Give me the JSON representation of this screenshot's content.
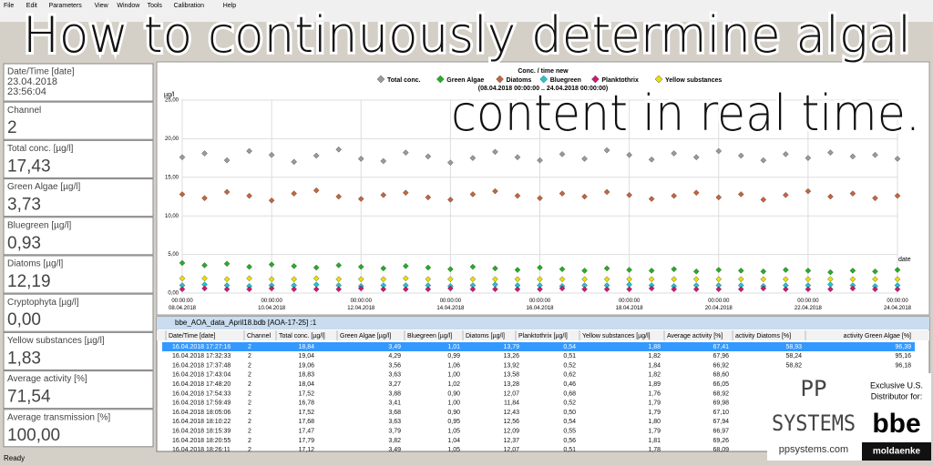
{
  "menu": [
    "File",
    "Edit",
    "Parameters",
    "View",
    "Window",
    "Tools",
    "Calibration",
    "Help"
  ],
  "overlay_title": [
    "How to continuously determine algal",
    "content in real time."
  ],
  "panel": [
    {
      "label": "Date/Time [date]",
      "value": [
        "23.04.2018",
        "23:56:04"
      ]
    },
    {
      "label": "Channel",
      "value": "2"
    },
    {
      "label": "Total conc. [µg/l]",
      "value": "17,43"
    },
    {
      "label": "Green Algae [µg/l]",
      "value": "3,73"
    },
    {
      "label": "Bluegreen [µg/l]",
      "value": "0,93"
    },
    {
      "label": "Diatoms [µg/l]",
      "value": "12,19"
    },
    {
      "label": "Cryptophyta [µg/l]",
      "value": "0,00"
    },
    {
      "label": "Yellow substances [µg/l]",
      "value": "1,83"
    },
    {
      "label": "Average activity [%]",
      "value": "71,54"
    },
    {
      "label": "Average transmission [%]",
      "value": "100,00"
    }
  ],
  "chart_data": {
    "type": "scatter",
    "title": "Conc. / time new",
    "subtitle": "(08.04.2018 00:00:00 .. 24.04.2018 00:00:00)",
    "y_label": "µg/l",
    "x_label": "date",
    "xlim": [
      "08.04.2018 00:00:00",
      "24.04.2018 00:00:00"
    ],
    "xticks": [
      "08.04.2018 00:00:00",
      "10.04.2018 00:00:00",
      "12.04.2018 00:00:00",
      "14.04.2018 00:00:00",
      "16.04.2018 00:00:00",
      "18.04.2018 00:00:00",
      "20.04.2018 00:00:00",
      "22.04.2018 00:00:00",
      "24.04.2018 00:00:00"
    ],
    "ylim": [
      0,
      25
    ],
    "yticks": [
      {
        "value": 0,
        "label": "0,00"
      },
      {
        "value": 5,
        "label": "5,00"
      },
      {
        "value": 10,
        "label": "10,00"
      },
      {
        "value": 15,
        "label": "15,00"
      },
      {
        "value": 20,
        "label": "20,00"
      },
      {
        "value": 25,
        "label": "25,00"
      }
    ],
    "grid": true,
    "x": [
      "08.04.2018 00:00:00",
      "08.04.2018 12:00:00",
      "09.04.2018 00:00:00",
      "09.04.2018 12:00:00",
      "10.04.2018 00:00:00",
      "10.04.2018 12:00:00",
      "11.04.2018 00:00:00",
      "11.04.2018 12:00:00",
      "12.04.2018 00:00:00",
      "12.04.2018 12:00:00",
      "13.04.2018 00:00:00",
      "13.04.2018 12:00:00",
      "14.04.2018 00:00:00",
      "14.04.2018 12:00:00",
      "15.04.2018 00:00:00",
      "15.04.2018 12:00:00",
      "16.04.2018 00:00:00",
      "16.04.2018 12:00:00",
      "17.04.2018 00:00:00",
      "17.04.2018 12:00:00",
      "18.04.2018 00:00:00",
      "18.04.2018 12:00:00",
      "19.04.2018 00:00:00",
      "19.04.2018 12:00:00",
      "20.04.2018 00:00:00",
      "20.04.2018 12:00:00",
      "21.04.2018 00:00:00",
      "21.04.2018 12:00:00",
      "22.04.2018 00:00:00",
      "22.04.2018 12:00:00",
      "23.04.2018 00:00:00",
      "23.04.2018 12:00:00",
      "24.04.2018 00:00:00"
    ],
    "series": [
      {
        "name": "Total conc.",
        "color": "#9a9a9a",
        "values": [
          17.6,
          18.1,
          17.2,
          18.4,
          17.9,
          17.0,
          17.8,
          18.6,
          17.4,
          17.1,
          18.2,
          17.7,
          16.9,
          17.5,
          18.3,
          17.6,
          17.2,
          18.0,
          17.4,
          18.5,
          17.9,
          17.3,
          18.1,
          17.6,
          18.4,
          17.8,
          17.2,
          18.0,
          17.5,
          18.2,
          17.7,
          17.9,
          17.4
        ]
      },
      {
        "name": "Green Algae",
        "color": "#22b022",
        "values": [
          3.9,
          3.6,
          3.8,
          3.4,
          3.7,
          3.5,
          3.3,
          3.6,
          3.4,
          3.2,
          3.5,
          3.3,
          3.1,
          3.4,
          3.2,
          3.0,
          3.3,
          3.1,
          2.9,
          3.2,
          3.0,
          2.9,
          3.1,
          2.8,
          3.0,
          2.9,
          2.8,
          3.0,
          2.9,
          2.7,
          2.9,
          2.8,
          3.0
        ]
      },
      {
        "name": "Diatoms",
        "color": "#c8643c",
        "values": [
          12.8,
          12.3,
          13.1,
          12.6,
          12.0,
          12.9,
          13.3,
          12.5,
          12.2,
          12.7,
          13.0,
          12.4,
          12.1,
          12.8,
          13.2,
          12.6,
          12.3,
          12.9,
          12.5,
          13.1,
          12.7,
          12.2,
          12.6,
          13.0,
          12.4,
          12.8,
          12.1,
          12.7,
          13.2,
          12.5,
          12.9,
          12.3,
          12.6
        ]
      },
      {
        "name": "Bluegreen",
        "color": "#18c8d8",
        "values": [
          1.0,
          1.1,
          1.0,
          0.9,
          1.0,
          1.0,
          1.1,
          1.0,
          0.9,
          1.0,
          1.0,
          1.0,
          0.9,
          1.0,
          1.1,
          1.0,
          1.0,
          0.9,
          1.0,
          1.0,
          1.1,
          1.0,
          0.9,
          1.0,
          1.0,
          1.0,
          0.9,
          1.0,
          1.0,
          1.1,
          1.0,
          0.9,
          1.0
        ]
      },
      {
        "name": "Planktothrix",
        "color": "#d01870",
        "values": [
          0.5,
          0.6,
          0.5,
          0.5,
          0.6,
          0.5,
          0.5,
          0.5,
          0.6,
          0.5,
          0.5,
          0.5,
          0.6,
          0.5,
          0.5,
          0.5,
          0.5,
          0.6,
          0.5,
          0.5,
          0.5,
          0.6,
          0.5,
          0.5,
          0.5,
          0.5,
          0.6,
          0.5,
          0.5,
          0.5,
          0.6,
          0.5,
          0.5
        ]
      },
      {
        "name": "Yellow substances",
        "color": "#e8e000",
        "values": [
          1.9,
          1.9,
          1.8,
          1.9,
          1.8,
          1.8,
          1.9,
          1.8,
          1.8,
          1.8,
          1.9,
          1.8,
          1.8,
          1.8,
          1.8,
          1.8,
          1.8,
          1.8,
          1.8,
          1.8,
          1.8,
          1.8,
          1.8,
          1.8,
          1.8,
          1.8,
          1.8,
          1.8,
          1.8,
          1.8,
          1.8,
          1.8,
          1.8
        ]
      }
    ]
  },
  "table": {
    "title": "bbe_AOA_data_April18.bdb [AOA-17-25] :1",
    "columns": [
      "Date/Time [date]",
      "Channel",
      "Total conc. [µg/l]",
      "Green Algae [µg/l]",
      "Bluegreen [µg/l]",
      "Diatoms [µg/l]",
      "Planktothrix [µg/l]",
      "Yellow substances [µg/l]",
      "Average activity [%]",
      "activity Diatoms [%]",
      "activity Green Algae [%]"
    ],
    "rows": [
      [
        "16.04.2018 17:27:16",
        "2",
        "18,84",
        "3,49",
        "1,01",
        "13,79",
        "0,54",
        "1,88",
        "67,41",
        "58,93",
        "96,39"
      ],
      [
        "16.04.2018 17:32:33",
        "2",
        "19,04",
        "4,29",
        "0,99",
        "13,26",
        "0,51",
        "1,82",
        "67,96",
        "58,24",
        "95,16"
      ],
      [
        "16.04.2018 17:37:48",
        "2",
        "19,06",
        "3,56",
        "1,06",
        "13,92",
        "0,52",
        "1,84",
        "66,92",
        "58,82",
        "96,18"
      ],
      [
        "16.04.2018 17:43:04",
        "2",
        "18,83",
        "3,63",
        "1,00",
        "13,58",
        "0,62",
        "1,82",
        "68,60"
      ],
      [
        "16.04.2018 17:48:20",
        "2",
        "18,04",
        "3,27",
        "1,02",
        "13,28",
        "0,46",
        "1,89",
        "66,05"
      ],
      [
        "16.04.2018 17:54:33",
        "2",
        "17,52",
        "3,88",
        "0,90",
        "12,07",
        "0,68",
        "1,76",
        "68,92"
      ],
      [
        "16.04.2018 17:59:49",
        "2",
        "16,78",
        "3,41",
        "1,00",
        "11,84",
        "0,52",
        "1,79",
        "69,98"
      ],
      [
        "16.04.2018 18:05:06",
        "2",
        "17,52",
        "3,68",
        "0,90",
        "12,43",
        "0,50",
        "1,79",
        "67,10"
      ],
      [
        "16.04.2018 18:10:22",
        "2",
        "17,68",
        "3,63",
        "0,95",
        "12,56",
        "0,54",
        "1,80",
        "67,94"
      ],
      [
        "16.04.2018 18:15:39",
        "2",
        "17,47",
        "3,79",
        "1,05",
        "12,09",
        "0,55",
        "1,79",
        "66,97"
      ],
      [
        "16.04.2018 18:20:55",
        "2",
        "17,79",
        "3,82",
        "1,04",
        "12,37",
        "0,56",
        "1,81",
        "69,26"
      ],
      [
        "16.04.2018 18:26:11",
        "2",
        "17,12",
        "3,49",
        "1,05",
        "12,07",
        "0,51",
        "1,78",
        "68,09"
      ]
    ]
  },
  "logo": {
    "brand": [
      "PP",
      "SYSTEMS"
    ],
    "site": "ppsystems.com",
    "tagline": [
      "Exclusive U.S.",
      "Distributor for:"
    ],
    "partner": "bbe",
    "partner_sub": "moldaenke"
  },
  "status": "Ready"
}
